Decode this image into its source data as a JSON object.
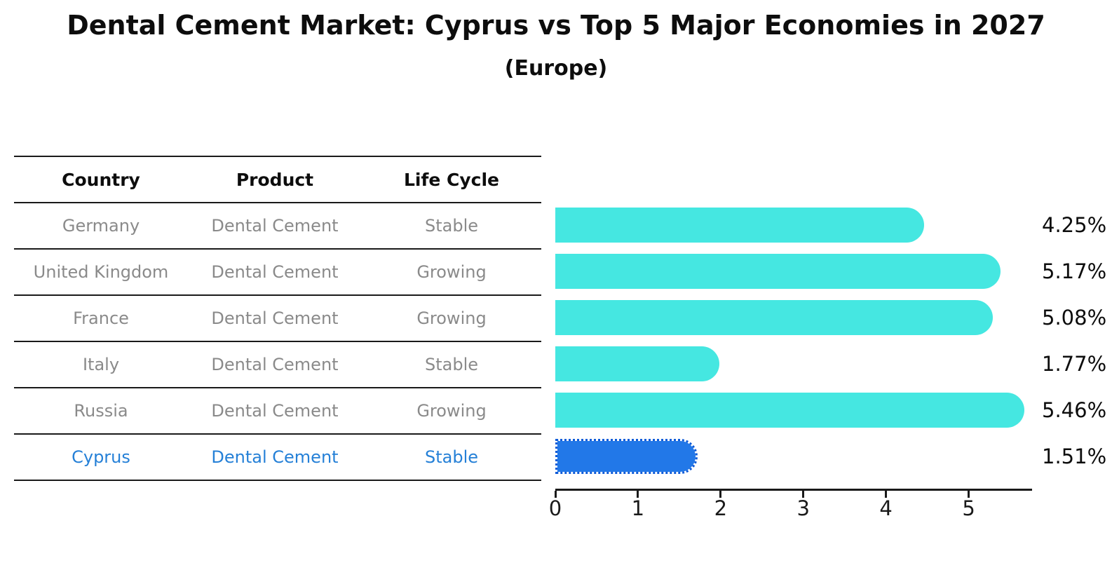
{
  "title": "Dental Cement Market: Cyprus vs Top 5 Major Economies in 2027",
  "subtitle": "(Europe)",
  "table": {
    "columns": [
      "Country",
      "Product",
      "Life Cycle"
    ],
    "rows": [
      {
        "country": "Germany",
        "product": "Dental Cement",
        "life_cycle": "Stable",
        "value": 4.25,
        "value_label": "4.25%",
        "highlight": false
      },
      {
        "country": "United Kingdom",
        "product": "Dental Cement",
        "life_cycle": "Growing",
        "value": 5.17,
        "value_label": "5.17%",
        "highlight": false
      },
      {
        "country": "France",
        "product": "Dental Cement",
        "life_cycle": "Growing",
        "value": 5.08,
        "value_label": "5.08%",
        "highlight": false
      },
      {
        "country": "Italy",
        "product": "Dental Cement",
        "life_cycle": "Stable",
        "value": 1.77,
        "value_label": "1.77%",
        "highlight": false
      },
      {
        "country": "Russia",
        "product": "Dental Cement",
        "life_cycle": "Growing",
        "value": 5.46,
        "value_label": "5.46%",
        "highlight": false
      },
      {
        "country": "Cyprus",
        "product": "Dental Cement",
        "life_cycle": "Stable",
        "value": 1.51,
        "value_label": "1.51%",
        "highlight": true
      }
    ]
  },
  "chart_data": {
    "type": "bar",
    "orientation": "horizontal",
    "title": "Dental Cement Market: Cyprus vs Top 5 Major Economies in 2027",
    "subtitle": "(Europe)",
    "categories": [
      "Germany",
      "United Kingdom",
      "France",
      "Italy",
      "Russia",
      "Cyprus"
    ],
    "values": [
      4.25,
      5.17,
      5.08,
      1.77,
      5.46,
      1.51
    ],
    "value_labels": [
      "4.25%",
      "5.17%",
      "5.08%",
      "1.77%",
      "5.46%",
      "1.51%"
    ],
    "unit": "%",
    "xlim": [
      0,
      5.75
    ],
    "xticks": [
      "0",
      "1",
      "2",
      "3",
      "4",
      "5"
    ],
    "grid": false,
    "legend": false,
    "bar_color": "#45e7e1",
    "highlight_color": "#2278e8",
    "highlight_text_color": "#2580d7",
    "highlight_category": "Cyprus",
    "highlight_edge_style": "dotted"
  }
}
